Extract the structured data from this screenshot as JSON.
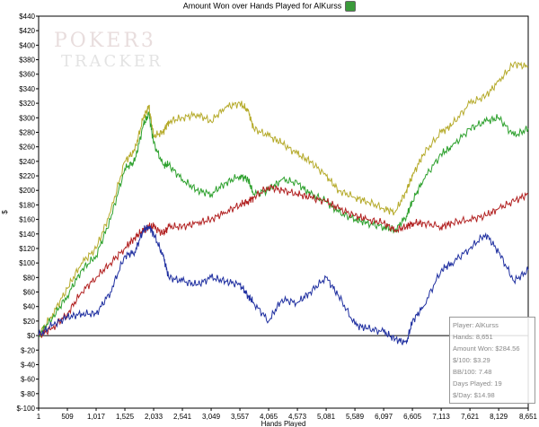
{
  "header": {
    "title": "Amount Won over Hands Played for AlKurss",
    "icon": "green-globe-icon"
  },
  "watermark": {
    "top": "POKER3",
    "bottom": "TRACKER"
  },
  "stats": {
    "player": "Player: AlKurss",
    "hands": "Hands: 8,651",
    "amount_won": "Amount Won: $284.56",
    "per100": "$/100: $3.29",
    "bb100": "BB/100: 7.48",
    "days_played": "Days Played: 19",
    "per_day": "$/Day: $14.98"
  },
  "chart_data": {
    "type": "line",
    "title": "Amount Won over Hands Played for AlKurss",
    "xlabel": "Hands Played",
    "ylabel": "$",
    "xlim": [
      1,
      8651
    ],
    "ylim": [
      -100,
      440
    ],
    "x_ticks": [
      "1",
      "509",
      "1,017",
      "1,525",
      "2,033",
      "2,541",
      "3,049",
      "3,557",
      "4,065",
      "4,573",
      "5,081",
      "5,589",
      "6,097",
      "6,605",
      "7,113",
      "7,621",
      "8,129",
      "8,651"
    ],
    "y_ticks": [
      "$-100",
      "$-80",
      "$-60",
      "$-40",
      "$-20",
      "$0",
      "$20",
      "$40",
      "$60",
      "$80",
      "$100",
      "$120",
      "$140",
      "$160",
      "$180",
      "$200",
      "$220",
      "$240",
      "$260",
      "$280",
      "$300",
      "$320",
      "$340",
      "$360",
      "$380",
      "$400",
      "$420",
      "$440"
    ],
    "grid": false,
    "series": [
      {
        "color": "#b5aa2a",
        "x": [
          1,
          250,
          509,
          760,
          1017,
          1270,
          1525,
          1700,
          1850,
          1950,
          2033,
          2200,
          2300,
          2541,
          2800,
          3049,
          3300,
          3557,
          3700,
          3800,
          4065,
          4300,
          4573,
          4800,
          5081,
          5300,
          5589,
          5800,
          6097,
          6300,
          6500,
          6605,
          6800,
          7113,
          7300,
          7621,
          7900,
          8129,
          8400,
          8651
        ],
        "y": [
          0,
          30,
          65,
          100,
          120,
          170,
          240,
          255,
          300,
          315,
          275,
          280,
          295,
          300,
          305,
          295,
          315,
          320,
          310,
          285,
          275,
          265,
          250,
          240,
          220,
          200,
          190,
          185,
          175,
          170,
          200,
          220,
          250,
          280,
          290,
          320,
          330,
          350,
          375,
          370
        ]
      },
      {
        "color": "#2ca02c",
        "x": [
          1,
          250,
          509,
          760,
          1017,
          1270,
          1525,
          1700,
          1850,
          1950,
          2033,
          2200,
          2300,
          2541,
          2800,
          3049,
          3300,
          3557,
          3700,
          3800,
          4065,
          4300,
          4573,
          4800,
          5081,
          5300,
          5589,
          5800,
          6097,
          6300,
          6500,
          6605,
          6800,
          7113,
          7300,
          7621,
          7900,
          8129,
          8400,
          8651
        ],
        "y": [
          0,
          25,
          55,
          90,
          110,
          160,
          230,
          240,
          290,
          305,
          265,
          235,
          235,
          215,
          200,
          195,
          210,
          220,
          215,
          195,
          200,
          215,
          210,
          195,
          185,
          170,
          160,
          155,
          150,
          145,
          165,
          185,
          215,
          250,
          260,
          285,
          295,
          300,
          275,
          285
        ]
      },
      {
        "color": "#b22222",
        "x": [
          1,
          250,
          509,
          760,
          1017,
          1270,
          1525,
          1700,
          1850,
          1950,
          2033,
          2200,
          2300,
          2541,
          2800,
          3049,
          3300,
          3557,
          3700,
          3800,
          4065,
          4300,
          4573,
          4800,
          5081,
          5300,
          5589,
          5800,
          6097,
          6300,
          6500,
          6605,
          6800,
          7113,
          7300,
          7621,
          7900,
          8129,
          8400,
          8651
        ],
        "y": [
          0,
          10,
          30,
          60,
          80,
          100,
          120,
          135,
          145,
          150,
          150,
          140,
          150,
          150,
          155,
          160,
          170,
          180,
          185,
          190,
          205,
          200,
          195,
          190,
          185,
          175,
          165,
          160,
          155,
          145,
          150,
          155,
          155,
          150,
          155,
          160,
          165,
          175,
          185,
          195
        ]
      },
      {
        "color": "#1f2fa0",
        "x": [
          1,
          250,
          509,
          760,
          1017,
          1270,
          1525,
          1700,
          1850,
          1950,
          2033,
          2200,
          2300,
          2541,
          2800,
          3049,
          3300,
          3557,
          3700,
          3800,
          4065,
          4300,
          4573,
          4800,
          5081,
          5300,
          5589,
          5800,
          6097,
          6300,
          6500,
          6605,
          6800,
          7113,
          7300,
          7621,
          7900,
          8129,
          8400,
          8651
        ],
        "y": [
          0,
          15,
          25,
          30,
          30,
          60,
          110,
          115,
          145,
          150,
          140,
          110,
          80,
          75,
          70,
          80,
          75,
          70,
          55,
          45,
          20,
          50,
          45,
          60,
          80,
          55,
          15,
          10,
          5,
          -5,
          -10,
          20,
          40,
          90,
          100,
          120,
          140,
          115,
          75,
          90
        ]
      }
    ]
  }
}
